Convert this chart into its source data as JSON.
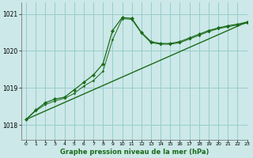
{
  "title": "Graphe pression niveau de la mer (hPa)",
  "background_color": "#cce8e8",
  "grid_color": "#99cccc",
  "line_color": "#1a6b1a",
  "xlim": [
    -0.5,
    23
  ],
  "ylim": [
    1017.6,
    1021.3
  ],
  "yticks": [
    1018,
    1019,
    1020,
    1021
  ],
  "xticks": [
    0,
    1,
    2,
    3,
    4,
    5,
    6,
    7,
    8,
    9,
    10,
    11,
    12,
    13,
    14,
    15,
    16,
    17,
    18,
    19,
    20,
    21,
    22,
    23
  ],
  "series1_x": [
    0,
    1,
    2,
    3,
    4,
    5,
    6,
    7,
    8,
    9,
    10,
    11,
    12,
    13,
    14,
    15,
    16,
    17,
    18,
    19,
    20,
    21,
    22,
    23
  ],
  "series1_y": [
    1018.15,
    1018.4,
    1018.6,
    1018.7,
    1018.75,
    1018.95,
    1019.15,
    1019.35,
    1019.65,
    1020.55,
    1020.9,
    1020.88,
    1020.5,
    1020.25,
    1020.2,
    1020.2,
    1020.25,
    1020.35,
    1020.45,
    1020.55,
    1020.62,
    1020.68,
    1020.72,
    1020.78
  ],
  "series2_x": [
    0,
    1,
    2,
    3,
    4,
    5,
    6,
    7,
    8,
    9,
    10,
    11,
    12,
    13,
    14,
    15,
    16,
    17,
    18,
    19,
    20,
    21,
    22,
    23
  ],
  "series2_y": [
    1018.15,
    1018.38,
    1018.55,
    1018.65,
    1018.72,
    1018.85,
    1019.05,
    1019.2,
    1019.45,
    1020.3,
    1020.87,
    1020.85,
    1020.48,
    1020.22,
    1020.18,
    1020.18,
    1020.22,
    1020.32,
    1020.42,
    1020.52,
    1020.6,
    1020.65,
    1020.7,
    1020.75
  ],
  "trend_x": [
    0,
    23
  ],
  "trend_y": [
    1018.15,
    1020.78
  ]
}
